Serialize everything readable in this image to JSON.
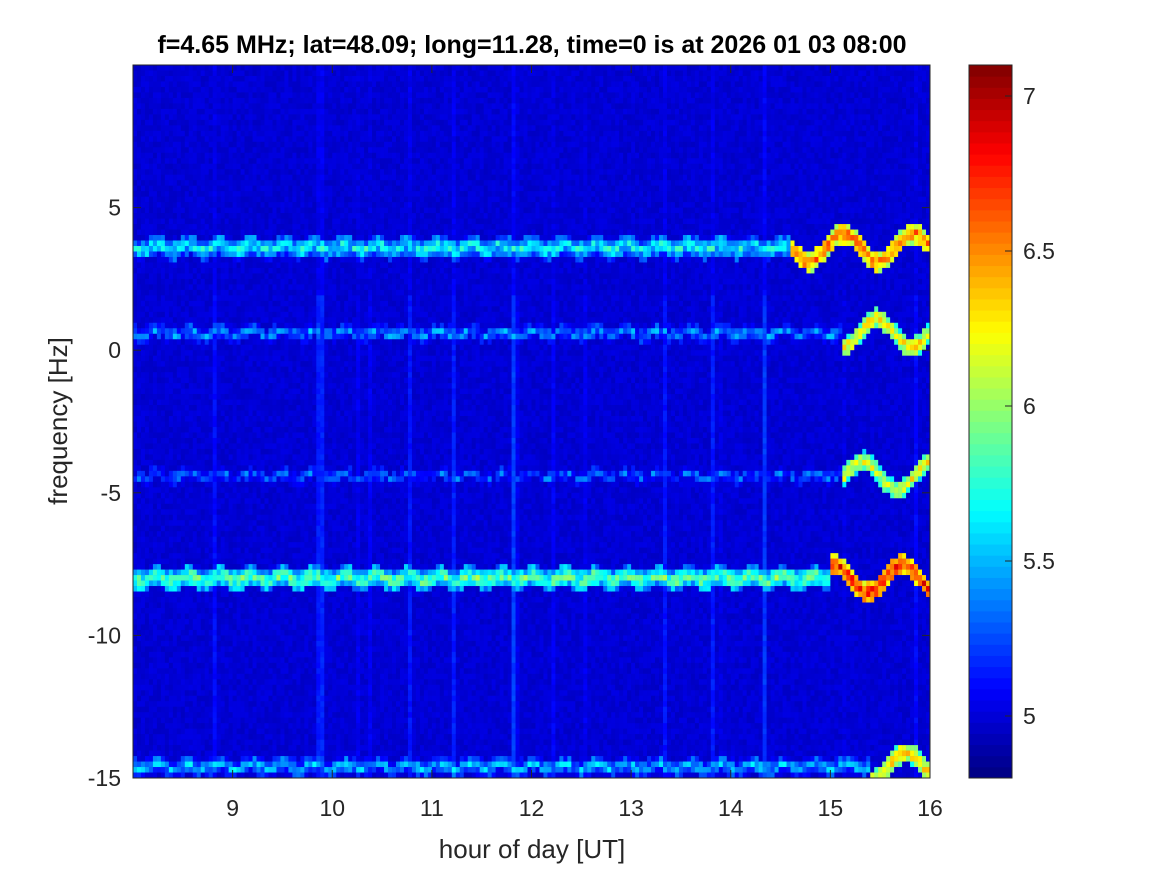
{
  "chart_data": {
    "type": "heatmap",
    "title": "f=4.65 MHz;  lat=48.09; long=11.28, time=0 is at 2026 01 03 08:00",
    "xlabel": "hour of day [UT]",
    "ylabel": "frequency [Hz]",
    "xlim": [
      8,
      16
    ],
    "ylim": [
      -15,
      10
    ],
    "x_ticks": [
      9,
      10,
      11,
      12,
      13,
      14,
      15,
      16
    ],
    "y_ticks": [
      -15,
      -10,
      -5,
      0,
      5
    ],
    "x_tick_labels": [
      "9",
      "10",
      "11",
      "12",
      "13",
      "14",
      "15",
      "16"
    ],
    "y_tick_labels": [
      "-15",
      "-10",
      "-5",
      "0",
      "5"
    ],
    "colormap": "jet",
    "colorbar": {
      "range": [
        4.8,
        7.1
      ],
      "ticks": [
        5,
        5.5,
        6,
        6.5,
        7
      ],
      "tick_labels": [
        "5",
        "5.5",
        "6",
        "6.5",
        "7"
      ]
    },
    "background_level": 4.95,
    "traces": [
      {
        "freq": 3.6,
        "level": 5.9,
        "strong_after": 14.6
      },
      {
        "freq": 0.6,
        "level": 5.6,
        "strong_after": 15.1
      },
      {
        "freq": -4.4,
        "level": 5.5,
        "strong_after": 15.1
      },
      {
        "freq": -8.0,
        "level": 6.1,
        "strong_after": 15.0
      },
      {
        "freq": -14.6,
        "level": 5.7,
        "strong_after": 15.4
      }
    ],
    "grid": false
  }
}
